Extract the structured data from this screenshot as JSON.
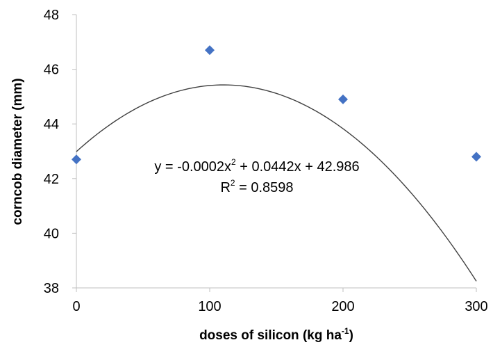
{
  "chart_data": {
    "type": "scatter",
    "title": "",
    "xlabel": "doses of silicon (kg ha",
    "xlabel_sup": "-1",
    "xlabel_suffix": ")",
    "ylabel": "corncob diameter (mm)",
    "xlim": [
      0,
      300
    ],
    "ylim": [
      38,
      48
    ],
    "x_ticks": [
      "0",
      "100",
      "200",
      "300"
    ],
    "y_ticks": [
      "38",
      "40",
      "42",
      "44",
      "46",
      "48"
    ],
    "grid": false,
    "legend": "none",
    "series": [
      {
        "x": [
          0,
          100,
          200,
          300
        ],
        "y": [
          42.7,
          46.7,
          44.9,
          42.8
        ],
        "marker": "diamond",
        "color": "#4472C4"
      }
    ],
    "trendline": {
      "type": "polynomial",
      "coefficients": [
        -0.0002,
        0.0442,
        42.986
      ],
      "color": "#404040"
    },
    "equation": {
      "line1_a": "y = -0.0002x",
      "line1_sup": "2",
      "line1_b": " + 0.0442x + 42.986",
      "line2_a": "R",
      "line2_sup": "2",
      "line2_b": " = 0.8598"
    }
  }
}
